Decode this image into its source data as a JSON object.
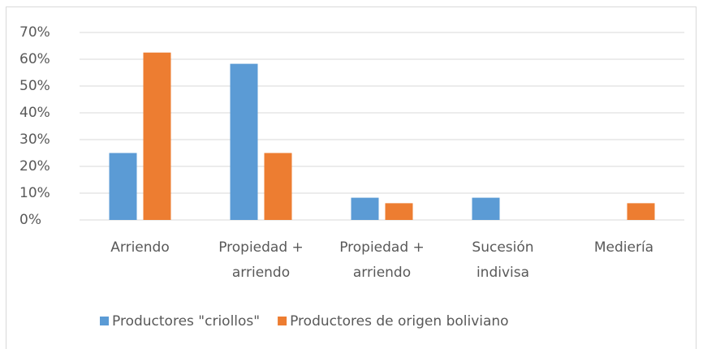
{
  "chart_data": {
    "type": "bar",
    "categories": [
      "Arriendo",
      "Propiedad + arriendo",
      "Propiedad + arriendo",
      "Sucesión indivisa",
      "Mediería"
    ],
    "series": [
      {
        "name": "Productores \"criollos\"",
        "color": "#5b9bd5",
        "values": [
          25,
          58.3,
          8.3,
          8.3,
          0
        ]
      },
      {
        "name": "Productores de origen boliviano",
        "color": "#ed7d31",
        "values": [
          62.5,
          25,
          6.25,
          0,
          6.25
        ]
      }
    ],
    "ylim": [
      0,
      70
    ],
    "yticks": [
      {
        "value": 0,
        "label": "0%"
      },
      {
        "value": 10,
        "label": "10%"
      },
      {
        "value": 20,
        "label": "20%"
      },
      {
        "value": 30,
        "label": "30%"
      },
      {
        "value": 40,
        "label": "40%"
      },
      {
        "value": 50,
        "label": "50%"
      },
      {
        "value": 60,
        "label": "60%"
      },
      {
        "value": 70,
        "label": "70%"
      }
    ],
    "grid": true,
    "legend": "bottom"
  }
}
